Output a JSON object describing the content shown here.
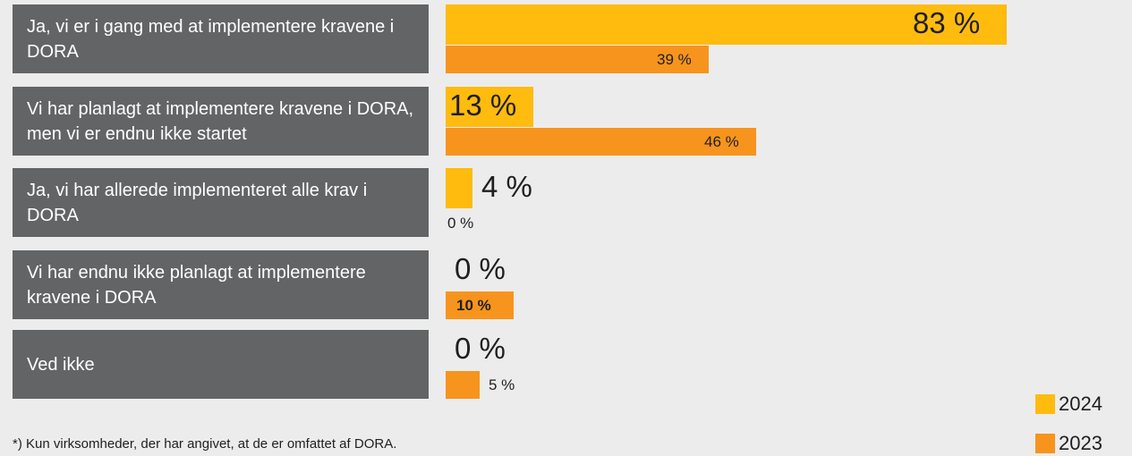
{
  "chart_data": {
    "type": "bar",
    "orientation": "horizontal",
    "categories": [
      "Ja, vi er i gang med at implementere kravene i DORA",
      "Vi har planlagt at implementere kravene i DORA, men vi er endnu ikke startet",
      "Ja, vi har allerede implementeret alle krav i DORA",
      "Vi har endnu ikke planlagt at implementere kravene i DORA",
      "Ved ikke"
    ],
    "series": [
      {
        "name": "2024",
        "values": [
          83,
          13,
          4,
          0,
          0
        ],
        "labels": [
          "83 %",
          "13 %",
          "4 %",
          "0 %",
          "0 %"
        ],
        "color": "#ffbb0e"
      },
      {
        "name": "2023",
        "values": [
          39,
          46,
          0,
          10,
          5
        ],
        "labels": [
          "39 %",
          "46 %",
          "0 %",
          "10 %",
          "5 %"
        ],
        "color": "#f7941d"
      }
    ],
    "unit": "%",
    "xlim": [
      0,
      100
    ],
    "grid": false,
    "legend": "bottom-right",
    "highlighted_labels": [
      "10 %"
    ]
  },
  "footnote": "*) Kun virksomheder, der har angivet, at de er omfattet af DORA."
}
